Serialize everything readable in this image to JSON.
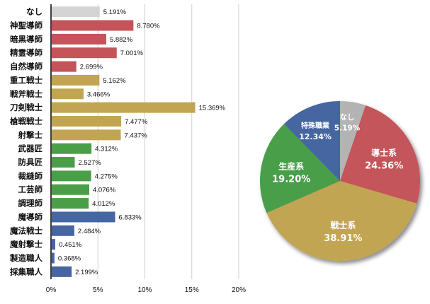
{
  "chart_data": [
    {
      "type": "bar",
      "orientation": "horizontal",
      "categories": [
        "なし",
        "神聖導師",
        "暗黒導師",
        "精霊導師",
        "自然導師",
        "重工戦士",
        "戦斧戦士",
        "刀剣戦士",
        "槍戦戦士",
        "射撃士",
        "武器匠",
        "防具匠",
        "裁縫師",
        "工芸師",
        "調理師",
        "魔導師",
        "魔法戦士",
        "魔射撃士",
        "製造職人",
        "採集職人"
      ],
      "values": [
        5.191,
        8.78,
        5.882,
        7.001,
        2.699,
        5.162,
        3.466,
        15.369,
        7.477,
        7.437,
        4.312,
        2.527,
        4.275,
        4.076,
        4.012,
        6.833,
        2.484,
        0.451,
        0.368,
        2.199
      ],
      "value_labels": [
        "5.191%",
        "8.780%",
        "5.882%",
        "7.001%",
        "2.699%",
        "5.162%",
        "3.466%",
        "15.369%",
        "7.477%",
        "7.437%",
        "4.312%",
        "2.527%",
        "4.275%",
        "4.076%",
        "4.012%",
        "6.833%",
        "2.484%",
        "0.451%",
        "0.368%",
        "2.199%"
      ],
      "groups": [
        "none",
        "導士系",
        "導士系",
        "導士系",
        "導士系",
        "戦士系",
        "戦士系",
        "戦士系",
        "戦士系",
        "戦士系",
        "生産系",
        "生産系",
        "生産系",
        "生産系",
        "生産系",
        "特殊職業",
        "特殊職業",
        "特殊職業",
        "特殊職業",
        "特殊職業"
      ],
      "xlim": [
        0,
        20
      ],
      "xticks": [
        0,
        5,
        10,
        15,
        20
      ],
      "xtick_labels": [
        "0%",
        "5%",
        "10%",
        "15%",
        "20%"
      ],
      "grid": true,
      "colors": {
        "none": "#d4d4d4",
        "導士系": "#c4545a",
        "戦士系": "#c2a552",
        "生産系": "#4a9e48",
        "特殊職業": "#4566a0"
      }
    },
    {
      "type": "pie",
      "slices": [
        {
          "label": "なし",
          "value": 5.19,
          "pct_label": "5.19%",
          "color": "#b3b3b3"
        },
        {
          "label": "導士系",
          "value": 24.36,
          "pct_label": "24.36%",
          "color": "#c4545a"
        },
        {
          "label": "戦士系",
          "value": 38.91,
          "pct_label": "38.91%",
          "color": "#c2a552"
        },
        {
          "label": "生産系",
          "value": 19.2,
          "pct_label": "19.20%",
          "color": "#4a9e48"
        },
        {
          "label": "特殊職業",
          "value": 12.34,
          "pct_label": "12.34%",
          "color": "#4566a0"
        }
      ]
    }
  ]
}
